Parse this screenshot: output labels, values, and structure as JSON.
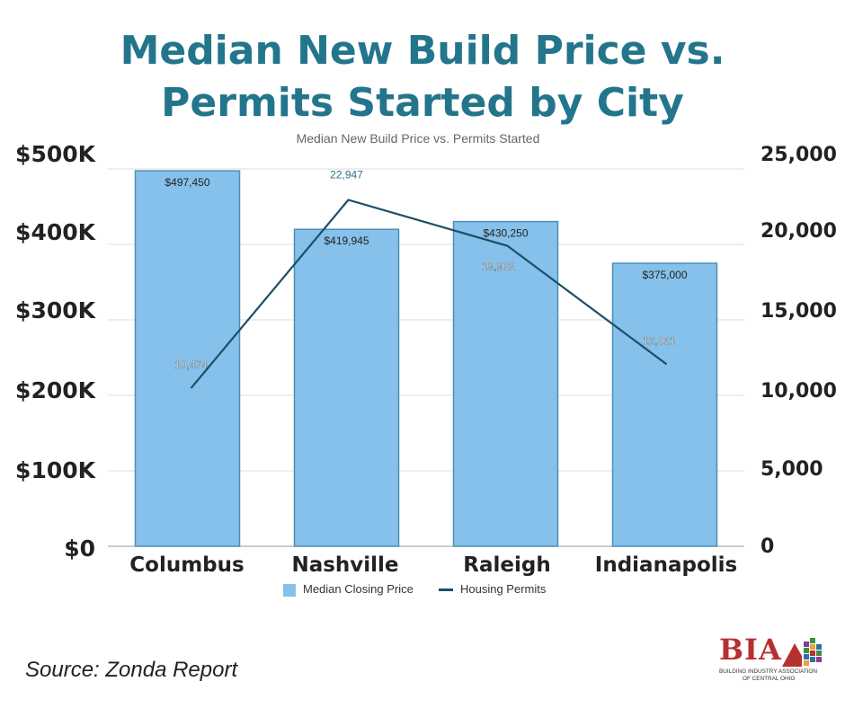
{
  "headline": {
    "line1": "Median New Build Price vs.",
    "line2": "Permits Started by City"
  },
  "chart_data": {
    "type": "bar",
    "title": "Median New Build Price vs. Permits Started",
    "categories": [
      "Columbus",
      "Nashville",
      "Raleigh",
      "Indianapolis"
    ],
    "series": [
      {
        "name": "Median Closing Price",
        "type": "bar",
        "axis": "left",
        "values": [
          497450,
          419945,
          430250,
          375000
        ],
        "labels": [
          "$497,450",
          "$419,945",
          "$430,250",
          "$375,000"
        ],
        "color": "#85c1ea"
      },
      {
        "name": "Housing Permits",
        "type": "line",
        "axis": "right",
        "values": [
          10474,
          22947,
          19902,
          12061
        ],
        "labels": [
          "10,474",
          "22,947",
          "19,902",
          "12,061"
        ],
        "color": "#1c4f66"
      }
    ],
    "y_left": {
      "ylim": [
        0,
        500000
      ],
      "ticks": [
        "$500K",
        "$400K",
        "$300K",
        "$200K",
        "$100K",
        "$0"
      ]
    },
    "y_right": {
      "ylim": [
        0,
        25000
      ],
      "ticks": [
        "25,000",
        "20,000",
        "15,000",
        "10,000",
        "5,000",
        "0"
      ]
    },
    "grid": true,
    "legend_position": "bottom"
  },
  "source": "Source: Zonda Report",
  "logo": {
    "text": "BIA",
    "subtitle_line1": "BUILDING INDUSTRY ASSOCIATION",
    "subtitle_line2": "OF CENTRAL OHIO"
  }
}
